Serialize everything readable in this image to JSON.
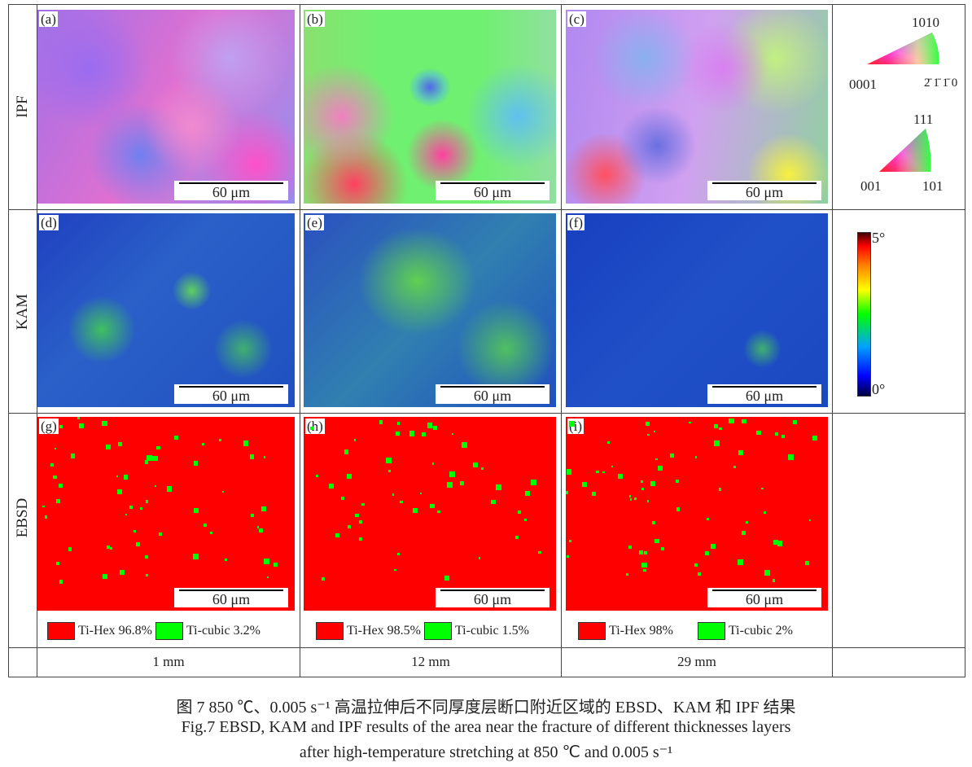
{
  "rows": [
    {
      "label": "IPF"
    },
    {
      "label": "KAM"
    },
    {
      "label": "EBSD"
    }
  ],
  "panels": [
    "(a)",
    "(b)",
    "(c)",
    "(d)",
    "(e)",
    "(f)",
    "(g)",
    "(h)",
    "(i)"
  ],
  "scale_bar": "60 μm",
  "ipf_legend": {
    "hex": {
      "top": "1010",
      "left": "0001",
      "right": "2̄ 1̄ 1̄ 0"
    },
    "cubic": {
      "top": "111",
      "left": "001",
      "right": "101"
    }
  },
  "kam_legend": {
    "max": "5°",
    "min": "0°",
    "colors": [
      "#000080",
      "#0000ff",
      "#00ff00",
      "#ffff00",
      "#ff0000",
      "#400000"
    ]
  },
  "phase_legend": [
    {
      "hex": "Ti-Hex 96.8%",
      "cubic": "Ti-cubic 3.2%"
    },
    {
      "hex": "Ti-Hex 98.5%",
      "cubic": "Ti-cubic 1.5%"
    },
    {
      "hex": "Ti-Hex 98%",
      "cubic": "Ti-cubic 2%"
    }
  ],
  "phase_colors": {
    "hex": "#ff0000",
    "cubic": "#00ff00"
  },
  "thickness": [
    "1 mm",
    "12 mm",
    "29 mm"
  ],
  "caption": {
    "cn": "图 7  850 ℃、0.005 s⁻¹ 高温拉伸后不同厚度层断口附近区域的 EBSD、KAM 和 IPF 结果",
    "en1": "Fig.7  EBSD, KAM and IPF results of the area near the fracture of different thicknesses layers",
    "en2": "after high-temperature stretching at 850 ℃ and 0.005 s⁻¹"
  }
}
